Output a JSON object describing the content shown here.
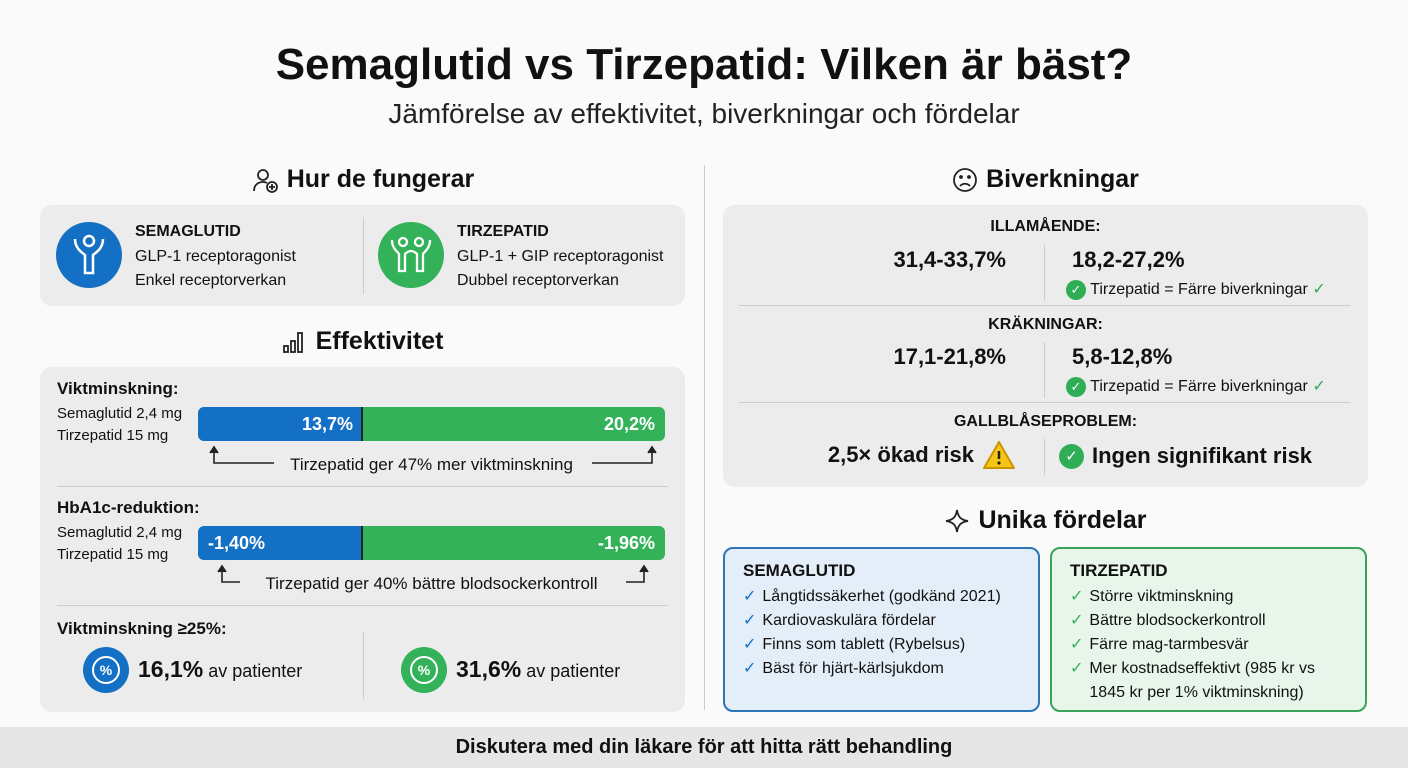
{
  "title": "Semaglutid vs Tirzepatid: Vilken är bäst?",
  "subtitle": "Jämförelse av effektivitet, biverkningar och fördelar",
  "colors": {
    "semaglutid": "#1470c4",
    "tirzepatid": "#33b25a",
    "warning": "#f5c518"
  },
  "mechanism": {
    "heading": "Hur de fungerar",
    "icon": "user-plus-icon",
    "semaglutid": {
      "name": "SEMAGLUTID",
      "line1": "GLP-1 receptoragonist",
      "line2": "Enkel receptorverkan",
      "icon": "single-receptor-icon"
    },
    "tirzepatid": {
      "name": "TIRZEPATID",
      "line1": "GLP-1 + GIP receptoragonist",
      "line2": "Dubbel receptorverkan",
      "icon": "dual-receptor-icon"
    }
  },
  "efficacy": {
    "heading": "Effektivitet",
    "icon": "bar-chart-icon",
    "weight": {
      "label": "Viktminskning:",
      "sema_dose": "Semaglutid 2,4 mg",
      "tirz_dose": "Tirzepatid 15 mg",
      "sema_value": "13,7%",
      "tirz_value": "20,2%",
      "note": "Tirzepatid ger 47% mer viktminskning"
    },
    "hba1c": {
      "label": "HbA1c-reduktion:",
      "sema_dose": "Semaglutid 2,4 mg",
      "tirz_dose": "Tirzepatid 15 mg",
      "sema_value": "-1,40%",
      "tirz_value": "-1,96%",
      "note": "Tirzepatid ger 40% bättre blodsockerkontroll"
    },
    "over25": {
      "label": "Viktminskning ≥25%:",
      "sema_value": "16,1%",
      "tirz_value": "31,6%",
      "suffix": "av patienter",
      "icon": "percent-icon"
    }
  },
  "side_effects": {
    "heading": "Biverkningar",
    "icon": "sad-face-icon",
    "nausea": {
      "label": "ILLAMÅENDE:",
      "sema": "31,4-33,7%",
      "tirz": "18,2-27,2%",
      "note": "Tirzepatid = Färre biverkningar"
    },
    "vomiting": {
      "label": "KRÄKNINGAR:",
      "sema": "17,1-21,8%",
      "tirz": "5,8-12,8%",
      "note": "Tirzepatid = Färre biverkningar"
    },
    "gallbladder": {
      "label": "GALLBLÅSEPROBLEM:",
      "sema": "2,5× ökad risk",
      "tirz": "Ingen signifikant risk"
    }
  },
  "benefits": {
    "heading": "Unika fördelar",
    "icon": "sparkle-icon",
    "semaglutid": {
      "name": "SEMAGLUTID",
      "items": [
        "Långtidssäkerhet (godkänd 2021)",
        "Kardiovaskulära fördelar",
        "Finns som tablett (Rybelsus)",
        "Bäst för hjärt-kärlsjukdom"
      ]
    },
    "tirzepatid": {
      "name": "TIRZEPATID",
      "items": [
        "Större viktminskning",
        "Bättre blodsockerkontroll",
        "Färre mag-tarmbesvär",
        "Mer kostnadseffektivt (985 kr vs 1845 kr per 1% viktminskning)"
      ]
    }
  },
  "footer": "Diskutera med din läkare för att hitta rätt behandling"
}
